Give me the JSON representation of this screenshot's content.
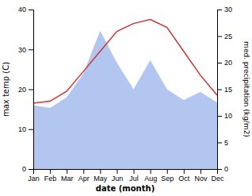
{
  "chart_data": {
    "type": "line",
    "x_label": "date (month)",
    "y_label": "max temp (C)",
    "y2_label": "med. precipitation (kg/m2)",
    "categories": [
      "Jan",
      "Feb",
      "Mar",
      "Apr",
      "May",
      "Jun",
      "Jul",
      "Aug",
      "Sep",
      "Oct",
      "Nov",
      "Dec"
    ],
    "series": [
      {
        "type": "area",
        "axis": "y2",
        "color": "#b3c6f0",
        "values": [
          12.0,
          11.5,
          13.5,
          18.0,
          26.0,
          20.0,
          15.0,
          20.5,
          15.0,
          13.0,
          14.5,
          12.5
        ]
      },
      {
        "type": "line",
        "color": "#cc3333",
        "values": [
          16.5,
          17.0,
          19.5,
          24.5,
          29.5,
          34.5,
          36.5,
          37.5,
          35.5,
          29.5,
          23.5,
          18.5
        ]
      }
    ],
    "ylim": [
      0,
      40
    ],
    "yticks": [
      0,
      10,
      20,
      30,
      40
    ],
    "y2lim": [
      0,
      30
    ],
    "y2ticks": [
      0,
      5,
      10,
      15,
      20,
      25,
      30
    ],
    "grid": false
  }
}
